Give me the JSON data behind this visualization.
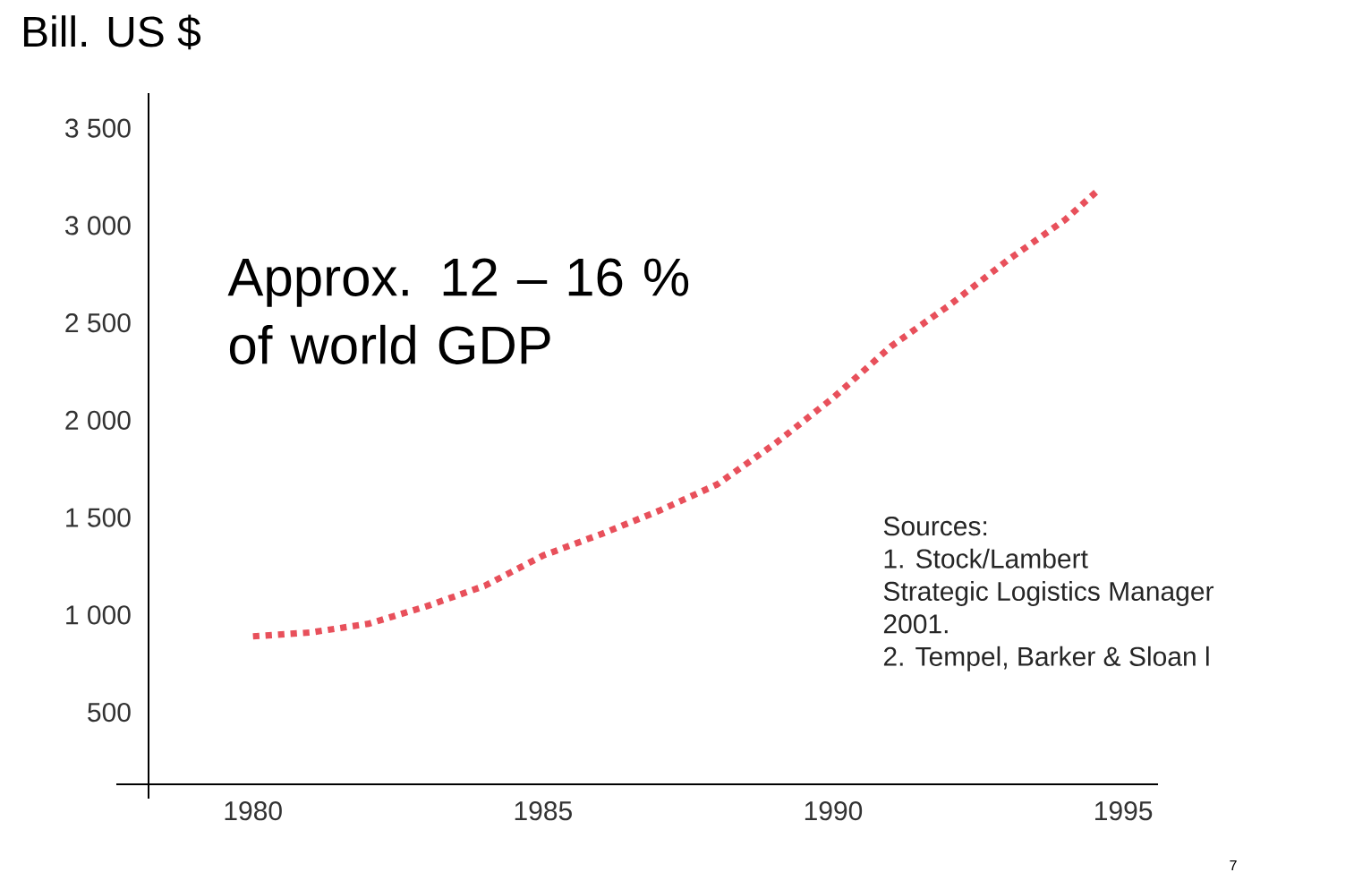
{
  "chart_data": {
    "type": "line",
    "ylabel": "Bill. US $",
    "x": [
      1980,
      1981,
      1982,
      1983,
      1984,
      1985,
      1986,
      1987,
      1988,
      1989,
      1990,
      1991,
      1992,
      1993,
      1994,
      1994.6
    ],
    "series": [
      {
        "color": "#e8505b",
        "values": [
          890,
          910,
          955,
          1045,
          1150,
          1305,
          1415,
          1535,
          1670,
          1880,
          2115,
          2380,
          2590,
          2820,
          3030,
          3190
        ]
      }
    ],
    "xlim": [
      1978.2,
      1995.6
    ],
    "ylim": [
      130,
      3680
    ],
    "xticks": [
      1980,
      1985,
      1990,
      1995
    ],
    "yticks": [
      500,
      {
        "value": 1000,
        "label": "1 000"
      },
      {
        "value": 1500,
        "label": "1 500"
      },
      {
        "value": 2000,
        "label": "2 000"
      },
      {
        "value": 2500,
        "label": "2 500"
      },
      {
        "value": 3000,
        "label": "3 000"
      },
      {
        "value": 3500,
        "label": "3 500"
      }
    ],
    "line_style": "dotted",
    "marker": "none",
    "annotations": [
      "Approx. 12 – 16 % of world GDP",
      "Sources:",
      "1. Stock/Lambert",
      "Strategic Logistics Manager",
      "2001.",
      "2. Tempel, Barker & Sloan l",
      "7"
    ]
  }
}
